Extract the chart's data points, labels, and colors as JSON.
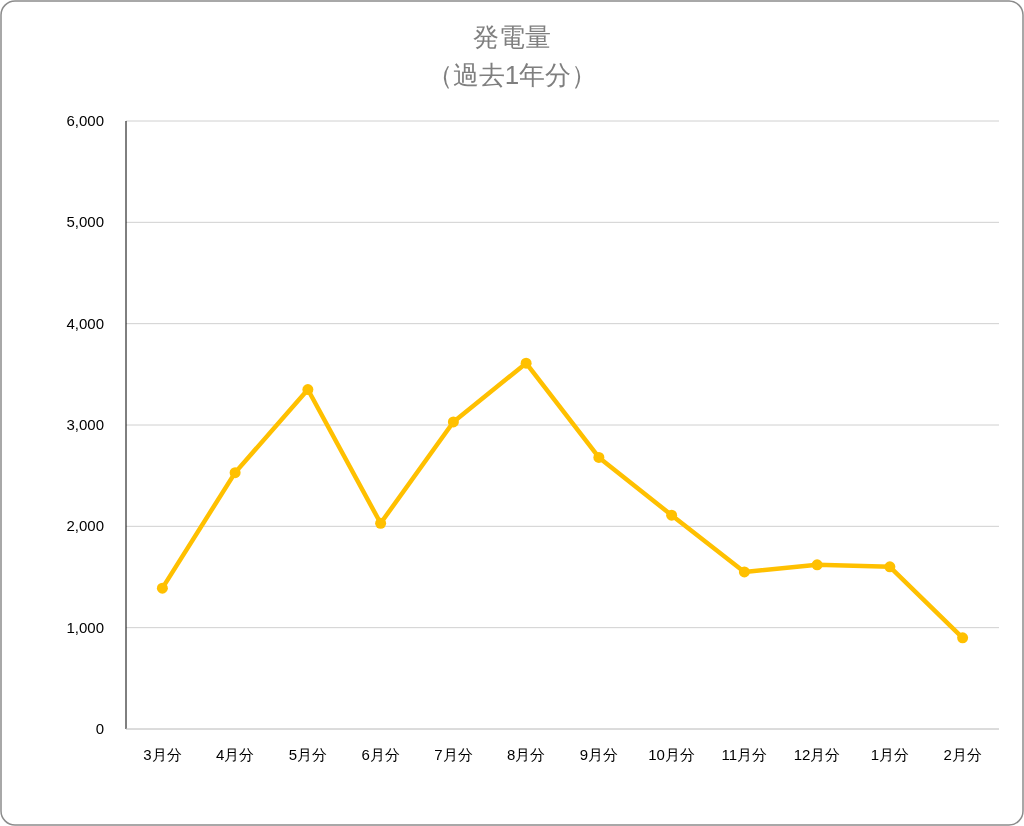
{
  "chart_data": {
    "type": "line",
    "title": "発電量",
    "subtitle": "（過去1年分）",
    "categories": [
      "3月分",
      "4月分",
      "5月分",
      "6月分",
      "7月分",
      "8月分",
      "9月分",
      "10月分",
      "11月分",
      "12月分",
      "1月分",
      "2月分"
    ],
    "series": [
      {
        "color": "#ffc000",
        "values": [
          1390,
          2530,
          3350,
          2030,
          3030,
          3610,
          2680,
          2110,
          1550,
          1620,
          1600,
          900
        ]
      }
    ],
    "ylim": [
      0,
      6000
    ],
    "yticks": [
      0,
      {
        "value": 1000,
        "label": "1,000"
      },
      {
        "value": 2000,
        "label": "2,000"
      },
      {
        "value": 3000,
        "label": "3,000"
      },
      {
        "value": 4000,
        "label": "4,000"
      },
      {
        "value": 5000,
        "label": "5,000"
      },
      {
        "value": 6000,
        "label": "6,000"
      }
    ],
    "grid": "y",
    "marker": "circle",
    "line_style": "solid"
  }
}
